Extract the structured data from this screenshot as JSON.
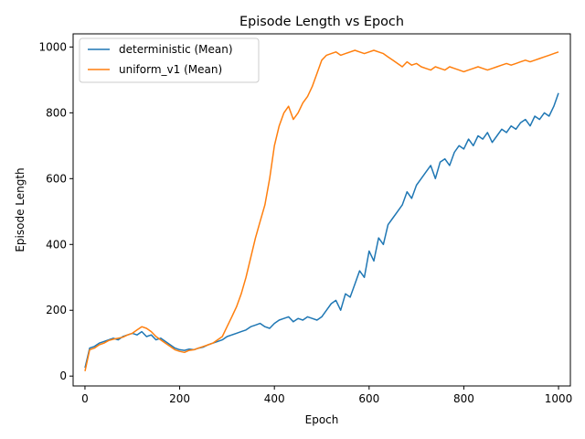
{
  "chart_data": {
    "type": "line",
    "title": "Episode Length vs Epoch",
    "xlabel": "Epoch",
    "ylabel": "Episode Length",
    "xlim": [
      -25,
      1025
    ],
    "ylim": [
      -30,
      1040
    ],
    "xticks": [
      0,
      200,
      400,
      600,
      800,
      1000
    ],
    "yticks": [
      0,
      200,
      400,
      600,
      800,
      1000
    ],
    "legend_position": "top-left",
    "grid": false,
    "series": [
      {
        "name": "deterministic (Mean)",
        "color": "#1f77b4",
        "points": [
          [
            0,
            25
          ],
          [
            10,
            85
          ],
          [
            20,
            90
          ],
          [
            30,
            100
          ],
          [
            40,
            105
          ],
          [
            50,
            110
          ],
          [
            60,
            115
          ],
          [
            70,
            110
          ],
          [
            80,
            120
          ],
          [
            90,
            125
          ],
          [
            100,
            130
          ],
          [
            110,
            125
          ],
          [
            120,
            135
          ],
          [
            130,
            120
          ],
          [
            140,
            125
          ],
          [
            150,
            110
          ],
          [
            160,
            115
          ],
          [
            170,
            105
          ],
          [
            180,
            95
          ],
          [
            190,
            85
          ],
          [
            200,
            80
          ],
          [
            210,
            78
          ],
          [
            220,
            82
          ],
          [
            230,
            80
          ],
          [
            240,
            85
          ],
          [
            250,
            88
          ],
          [
            260,
            95
          ],
          [
            270,
            100
          ],
          [
            280,
            105
          ],
          [
            290,
            110
          ],
          [
            300,
            120
          ],
          [
            310,
            125
          ],
          [
            320,
            130
          ],
          [
            330,
            135
          ],
          [
            340,
            140
          ],
          [
            350,
            150
          ],
          [
            360,
            155
          ],
          [
            370,
            160
          ],
          [
            380,
            150
          ],
          [
            390,
            145
          ],
          [
            400,
            160
          ],
          [
            410,
            170
          ],
          [
            420,
            175
          ],
          [
            430,
            180
          ],
          [
            440,
            165
          ],
          [
            450,
            175
          ],
          [
            460,
            170
          ],
          [
            470,
            180
          ],
          [
            480,
            175
          ],
          [
            490,
            170
          ],
          [
            500,
            180
          ],
          [
            510,
            200
          ],
          [
            520,
            220
          ],
          [
            530,
            230
          ],
          [
            540,
            200
          ],
          [
            550,
            250
          ],
          [
            560,
            240
          ],
          [
            570,
            280
          ],
          [
            580,
            320
          ],
          [
            590,
            300
          ],
          [
            600,
            380
          ],
          [
            610,
            350
          ],
          [
            620,
            420
          ],
          [
            630,
            400
          ],
          [
            640,
            460
          ],
          [
            650,
            480
          ],
          [
            660,
            500
          ],
          [
            670,
            520
          ],
          [
            680,
            560
          ],
          [
            690,
            540
          ],
          [
            700,
            580
          ],
          [
            710,
            600
          ],
          [
            720,
            620
          ],
          [
            730,
            640
          ],
          [
            740,
            600
          ],
          [
            750,
            650
          ],
          [
            760,
            660
          ],
          [
            770,
            640
          ],
          [
            780,
            680
          ],
          [
            790,
            700
          ],
          [
            800,
            690
          ],
          [
            810,
            720
          ],
          [
            820,
            700
          ],
          [
            830,
            730
          ],
          [
            840,
            720
          ],
          [
            850,
            740
          ],
          [
            860,
            710
          ],
          [
            870,
            730
          ],
          [
            880,
            750
          ],
          [
            890,
            740
          ],
          [
            900,
            760
          ],
          [
            910,
            750
          ],
          [
            920,
            770
          ],
          [
            930,
            780
          ],
          [
            940,
            760
          ],
          [
            950,
            790
          ],
          [
            960,
            780
          ],
          [
            970,
            800
          ],
          [
            980,
            790
          ],
          [
            990,
            820
          ],
          [
            1000,
            860
          ]
        ]
      },
      {
        "name": "uniform_v1 (Mean)",
        "color": "#ff7f0e",
        "points": [
          [
            0,
            15
          ],
          [
            10,
            80
          ],
          [
            20,
            85
          ],
          [
            30,
            95
          ],
          [
            40,
            100
          ],
          [
            50,
            108
          ],
          [
            60,
            112
          ],
          [
            70,
            115
          ],
          [
            80,
            118
          ],
          [
            90,
            125
          ],
          [
            100,
            130
          ],
          [
            110,
            140
          ],
          [
            120,
            150
          ],
          [
            130,
            145
          ],
          [
            140,
            135
          ],
          [
            150,
            120
          ],
          [
            160,
            110
          ],
          [
            170,
            100
          ],
          [
            180,
            90
          ],
          [
            190,
            80
          ],
          [
            200,
            75
          ],
          [
            210,
            72
          ],
          [
            220,
            78
          ],
          [
            230,
            80
          ],
          [
            240,
            85
          ],
          [
            250,
            90
          ],
          [
            260,
            95
          ],
          [
            270,
            100
          ],
          [
            280,
            110
          ],
          [
            290,
            120
          ],
          [
            300,
            150
          ],
          [
            310,
            180
          ],
          [
            320,
            210
          ],
          [
            330,
            250
          ],
          [
            340,
            300
          ],
          [
            350,
            360
          ],
          [
            360,
            420
          ],
          [
            370,
            470
          ],
          [
            380,
            520
          ],
          [
            390,
            600
          ],
          [
            400,
            700
          ],
          [
            410,
            760
          ],
          [
            420,
            800
          ],
          [
            430,
            820
          ],
          [
            440,
            780
          ],
          [
            450,
            800
          ],
          [
            460,
            830
          ],
          [
            470,
            850
          ],
          [
            480,
            880
          ],
          [
            490,
            920
          ],
          [
            500,
            960
          ],
          [
            510,
            975
          ],
          [
            520,
            980
          ],
          [
            530,
            985
          ],
          [
            540,
            975
          ],
          [
            550,
            980
          ],
          [
            560,
            985
          ],
          [
            570,
            990
          ],
          [
            580,
            985
          ],
          [
            590,
            980
          ],
          [
            600,
            985
          ],
          [
            610,
            990
          ],
          [
            620,
            985
          ],
          [
            630,
            980
          ],
          [
            640,
            970
          ],
          [
            650,
            960
          ],
          [
            660,
            950
          ],
          [
            670,
            940
          ],
          [
            680,
            955
          ],
          [
            690,
            945
          ],
          [
            700,
            950
          ],
          [
            710,
            940
          ],
          [
            720,
            935
          ],
          [
            730,
            930
          ],
          [
            740,
            940
          ],
          [
            750,
            935
          ],
          [
            760,
            930
          ],
          [
            770,
            940
          ],
          [
            780,
            935
          ],
          [
            790,
            930
          ],
          [
            800,
            925
          ],
          [
            810,
            930
          ],
          [
            820,
            935
          ],
          [
            830,
            940
          ],
          [
            840,
            935
          ],
          [
            850,
            930
          ],
          [
            860,
            935
          ],
          [
            870,
            940
          ],
          [
            880,
            945
          ],
          [
            890,
            950
          ],
          [
            900,
            945
          ],
          [
            910,
            950
          ],
          [
            920,
            955
          ],
          [
            930,
            960
          ],
          [
            940,
            955
          ],
          [
            950,
            960
          ],
          [
            960,
            965
          ],
          [
            970,
            970
          ],
          [
            980,
            975
          ],
          [
            990,
            980
          ],
          [
            1000,
            985
          ]
        ]
      }
    ]
  }
}
